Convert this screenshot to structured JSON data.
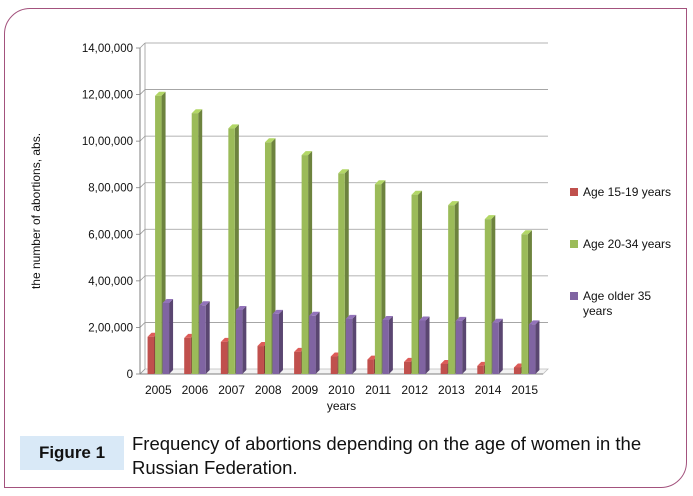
{
  "chart_data": {
    "type": "bar",
    "categories": [
      "2005",
      "2006",
      "2007",
      "2008",
      "2009",
      "2010",
      "2011",
      "2012",
      "2013",
      "2014",
      "2015"
    ],
    "series": [
      {
        "name": "Age 15-19 years",
        "color": "#c0504d",
        "values": [
          160000,
          155000,
          138000,
          120000,
          95000,
          75000,
          62000,
          52000,
          43000,
          35000,
          28000
        ]
      },
      {
        "name": "Age 20-34 years",
        "color": "#9bbb59",
        "values": [
          1195000,
          1120000,
          1055000,
          995000,
          940000,
          862000,
          815000,
          770000,
          725000,
          665000,
          600000
        ]
      },
      {
        "name": "Age older 35 years",
        "color": "#8064a2",
        "values": [
          305000,
          295000,
          275000,
          258000,
          250000,
          237000,
          232000,
          230000,
          228000,
          220000,
          213000
        ]
      }
    ],
    "yticks": [
      "0",
      "2,00,000",
      "4,00,000",
      "6,00,000",
      "8,00,000",
      "10,00,000",
      "12,00,000",
      "14,00,000"
    ],
    "ylim": [
      0,
      1400000
    ],
    "xlabel": "years",
    "ylabel": "the number of abortions, abs.",
    "legend_position": "right",
    "legend_labels": [
      "Age 15-19 years",
      "Age 20-34 years",
      "Age older 35\nyears"
    ],
    "grid": true
  },
  "caption": {
    "label": "Figure 1",
    "text": "Frequency of abortions depending on the age of women in the Russian Federation."
  }
}
